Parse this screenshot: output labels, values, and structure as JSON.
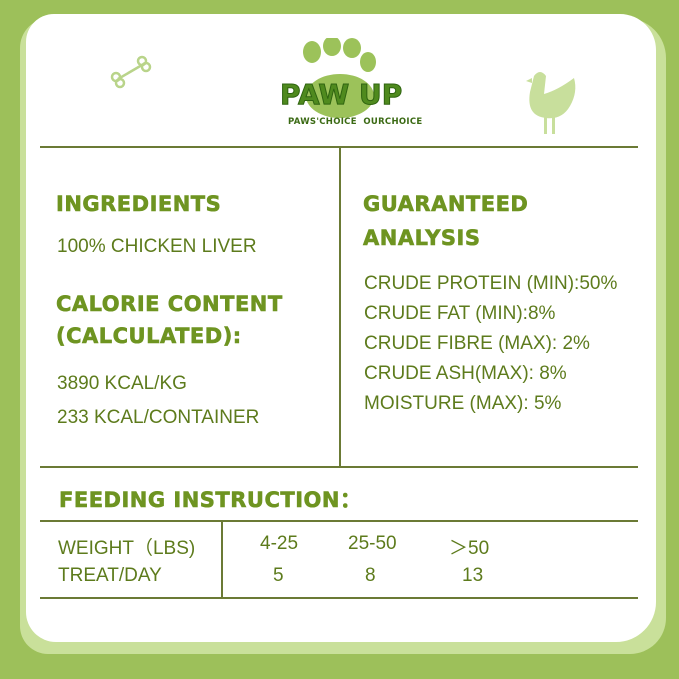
{
  "brand": {
    "logo": "PAW UP",
    "tagline": "PAWS'CHOICE  OURCHOICE"
  },
  "colors": {
    "background": "#9dc05a",
    "heading": "#6e9421",
    "text": "#5d7b1c",
    "line": "#6b7a35"
  },
  "icons": [
    "bone-icon",
    "paw-icon",
    "chicken-icon"
  ],
  "ingredients": {
    "title": "INGREDIENTS",
    "value": "100% CHICKEN LIVER"
  },
  "calorie": {
    "title_line1": "CALORIE CONTENT",
    "title_line2": "(CALCULATED):",
    "lines": [
      "3890 KCAL/KG",
      "233 KCAL/CONTAINER"
    ]
  },
  "analysis": {
    "title_line1": "GUARANTEED",
    "title_line2": "ANALYSIS",
    "lines": [
      "CRUDE PROTEIN (MIN):50%",
      "CRUDE FAT (MIN):8%",
      "CRUDE FIBRE (MAX): 2%",
      "CRUDE ASH(MAX): 8%",
      "MOISTURE (MAX): 5%"
    ]
  },
  "feeding": {
    "title": "FEEDING INSTRUCTION：",
    "rows": [
      {
        "label": "WEIGHT（LBS)",
        "values": [
          "4-25",
          "25-50",
          "＞50"
        ]
      },
      {
        "label": "TREAT/DAY",
        "values": [
          "5",
          "8",
          "13"
        ]
      }
    ]
  }
}
